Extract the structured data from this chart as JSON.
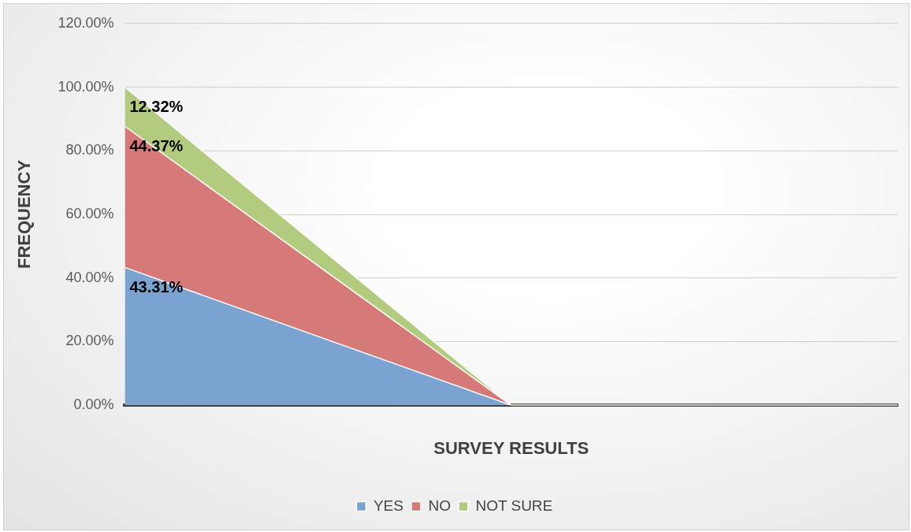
{
  "chart_data": {
    "type": "area",
    "xlabel": "SURVEY RESULTS",
    "ylabel": "FREQUENCY",
    "categories": [
      null,
      null,
      null
    ],
    "stacked": true,
    "series": [
      {
        "name": "YES",
        "color": "#7ba3d1",
        "values": [
          43.31,
          0,
          0
        ],
        "value_labels": [
          "43.31%",
          null,
          null
        ]
      },
      {
        "name": "NO",
        "color": "#d57a78",
        "values": [
          44.37,
          0,
          0
        ],
        "value_labels": [
          "44.37%",
          null,
          null
        ]
      },
      {
        "name": "NOT SURE",
        "color": "#b3cb7e",
        "values": [
          12.32,
          0,
          0
        ],
        "value_labels": [
          "12.32%",
          null,
          null
        ]
      }
    ],
    "ylim": [
      0,
      120
    ],
    "yticks": [
      {
        "value": 0,
        "label": "0.00%"
      },
      {
        "value": 20,
        "label": "20.00%"
      },
      {
        "value": 40,
        "label": "40.00%"
      },
      {
        "value": 60,
        "label": "60.00%"
      },
      {
        "value": 80,
        "label": "80.00%"
      },
      {
        "value": 100,
        "label": "100.00%"
      },
      {
        "value": 120,
        "label": "120.00%"
      }
    ],
    "grid": "y",
    "legend": "bottom"
  }
}
